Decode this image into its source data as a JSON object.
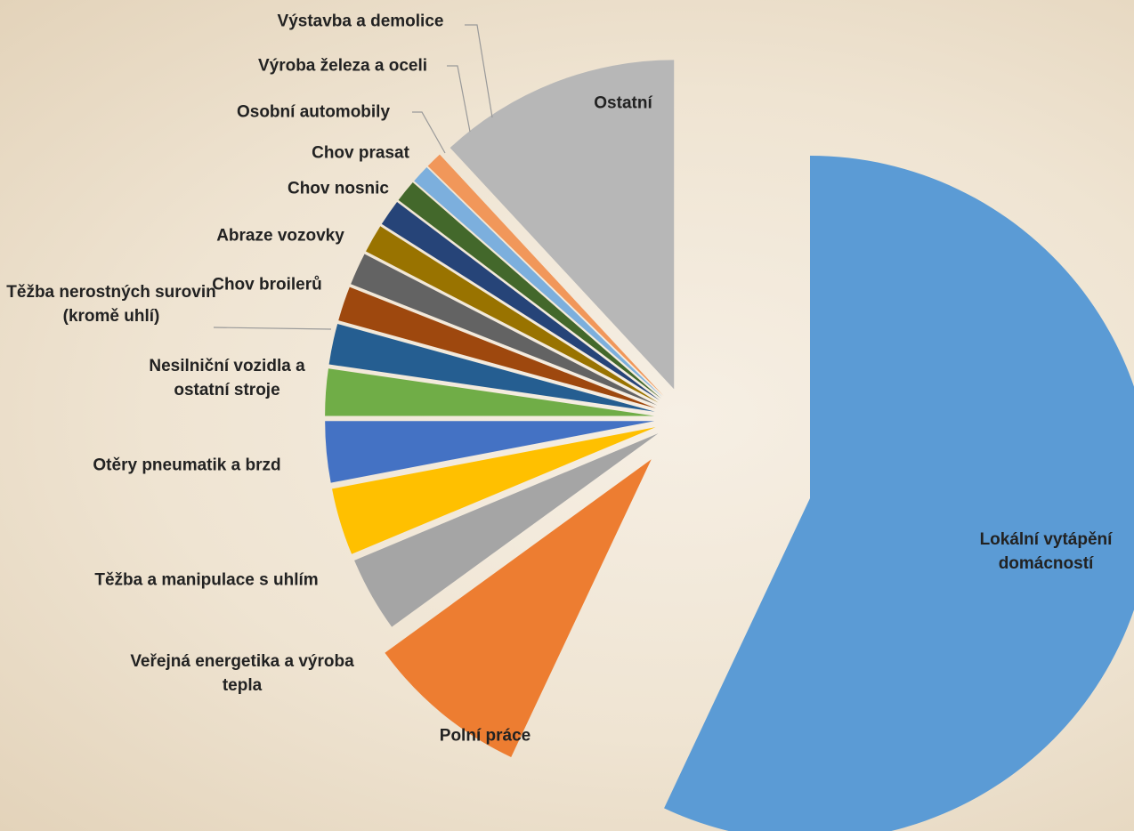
{
  "chart_data": {
    "type": "pie",
    "categories": [
      "Lokální vytápění domácností",
      "Polní práce",
      "Veřejná energetika a výroba tepla",
      "Těžba a manipulace s uhlím",
      "Otěry pneumatik a brzd",
      "Nesilniční vozidla a ostatní stroje",
      "Těžba nerostných surovin (kromě uhlí)",
      "Chov broilerů",
      "Abraze vozovky",
      "Chov nosnic",
      "Chov prasat",
      "Osobní automobily",
      "Výroba železa a oceli",
      "Výstavba a demolice",
      "Ostatní"
    ],
    "values": [
      57,
      8,
      3.7,
      3.3,
      3,
      2.3,
      2,
      1.7,
      1.6,
      1.4,
      1.3,
      1.1,
      0.9,
      0.8,
      11.9
    ],
    "colors": [
      "#5b9bd5",
      "#ed7d31",
      "#a5a5a5",
      "#ffc000",
      "#4472c4",
      "#70ad47",
      "#255e91",
      "#9e480e",
      "#636363",
      "#997300",
      "#264478",
      "#43682b",
      "#7cafdd",
      "#f1975a",
      "#b7b7b7"
    ]
  }
}
